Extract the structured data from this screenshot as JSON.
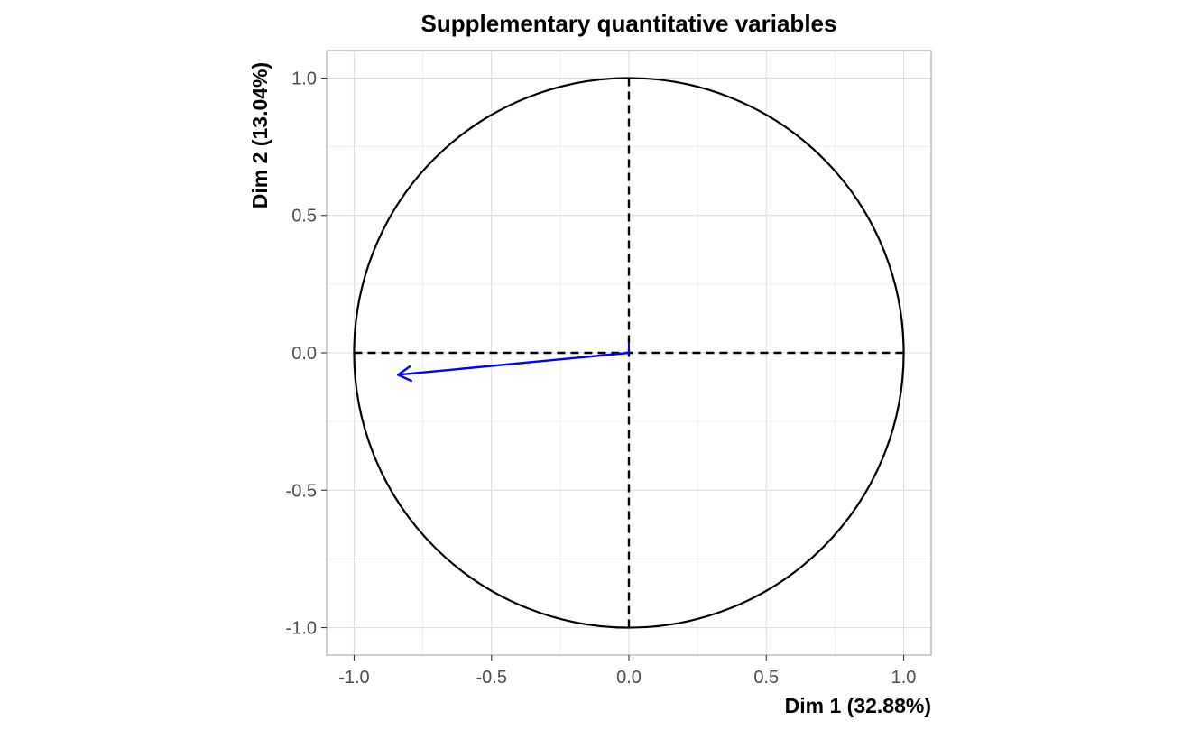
{
  "chart_data": {
    "type": "scatter",
    "subtype": "correlation-circle",
    "title": "Supplementary quantitative variables",
    "xlabel": "Dim 1 (32.88%)",
    "ylabel": "Dim 2 (13.04%)",
    "xlim": [
      -1.1,
      1.1
    ],
    "ylim": [
      -1.1,
      1.1
    ],
    "x_ticks": [
      -1.0,
      -0.5,
      0.0,
      0.5,
      1.0
    ],
    "y_ticks": [
      -1.0,
      -0.5,
      0.0,
      0.5,
      1.0
    ],
    "x_tick_labels": [
      "-1.0",
      "-0.5",
      "0.0",
      "0.5",
      "1.0"
    ],
    "y_tick_labels": [
      "-1.0",
      "-0.5",
      "0.0",
      "0.5",
      "1.0"
    ],
    "grid": true,
    "unit_circle": {
      "radius": 1.0,
      "color": "#000000"
    },
    "reference_lines": [
      {
        "axis": "x",
        "value": 0,
        "style": "dashed"
      },
      {
        "axis": "y",
        "value": 0,
        "style": "dashed"
      }
    ],
    "vectors": [
      {
        "x": -0.84,
        "y": -0.08,
        "color": "#0000ff"
      }
    ]
  }
}
